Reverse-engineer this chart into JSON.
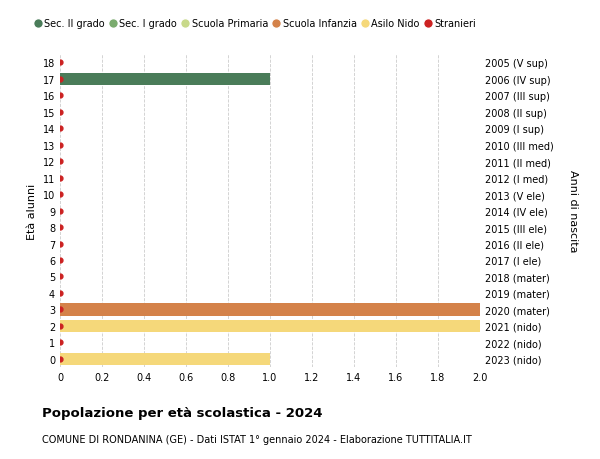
{
  "title": "Popolazione per età scolastica - 2024",
  "subtitle": "COMUNE DI RONDANINA (GE) - Dati ISTAT 1° gennaio 2024 - Elaborazione TUTTITALIA.IT",
  "ylabel_left": "Età alunni",
  "ylabel_right": "Anni di nascita",
  "xlim": [
    0,
    2.0
  ],
  "xticks": [
    0,
    0.2,
    0.4,
    0.6,
    0.8,
    1.0,
    1.2,
    1.4,
    1.6,
    1.8,
    2.0
  ],
  "ages": [
    0,
    1,
    2,
    3,
    4,
    5,
    6,
    7,
    8,
    9,
    10,
    11,
    12,
    13,
    14,
    15,
    16,
    17,
    18
  ],
  "birth_years": [
    "2023 (nido)",
    "2022 (nido)",
    "2021 (nido)",
    "2020 (mater)",
    "2019 (mater)",
    "2018 (mater)",
    "2017 (I ele)",
    "2016 (II ele)",
    "2015 (III ele)",
    "2014 (IV ele)",
    "2013 (V ele)",
    "2012 (I med)",
    "2011 (II med)",
    "2010 (III med)",
    "2009 (I sup)",
    "2008 (II sup)",
    "2007 (III sup)",
    "2006 (IV sup)",
    "2005 (V sup)"
  ],
  "bars": [
    {
      "age": 17,
      "value": 1.0,
      "color": "#4a7c59"
    },
    {
      "age": 3,
      "value": 2.0,
      "color": "#d4824a"
    },
    {
      "age": 2,
      "value": 2.0,
      "color": "#f5d87a"
    },
    {
      "age": 0,
      "value": 1.0,
      "color": "#f5d87a"
    }
  ],
  "stranieri_dots": [
    0,
    1,
    2,
    3,
    4,
    5,
    6,
    7,
    8,
    9,
    10,
    11,
    12,
    13,
    14,
    15,
    16,
    17,
    18
  ],
  "stranieri_color": "#cc2222",
  "background_color": "#ffffff",
  "grid_color": "#cccccc",
  "legend": [
    {
      "label": "Sec. II grado",
      "color": "#4a7c59",
      "type": "circle"
    },
    {
      "label": "Sec. I grado",
      "color": "#7aab6e",
      "type": "circle"
    },
    {
      "label": "Scuola Primaria",
      "color": "#c8d98a",
      "type": "circle"
    },
    {
      "label": "Scuola Infanzia",
      "color": "#d4824a",
      "type": "circle"
    },
    {
      "label": "Asilo Nido",
      "color": "#f5d87a",
      "type": "circle"
    },
    {
      "label": "Stranieri",
      "color": "#cc2222",
      "type": "circle"
    }
  ],
  "bar_height": 0.75,
  "ylim": [
    -0.5,
    18.5
  ]
}
